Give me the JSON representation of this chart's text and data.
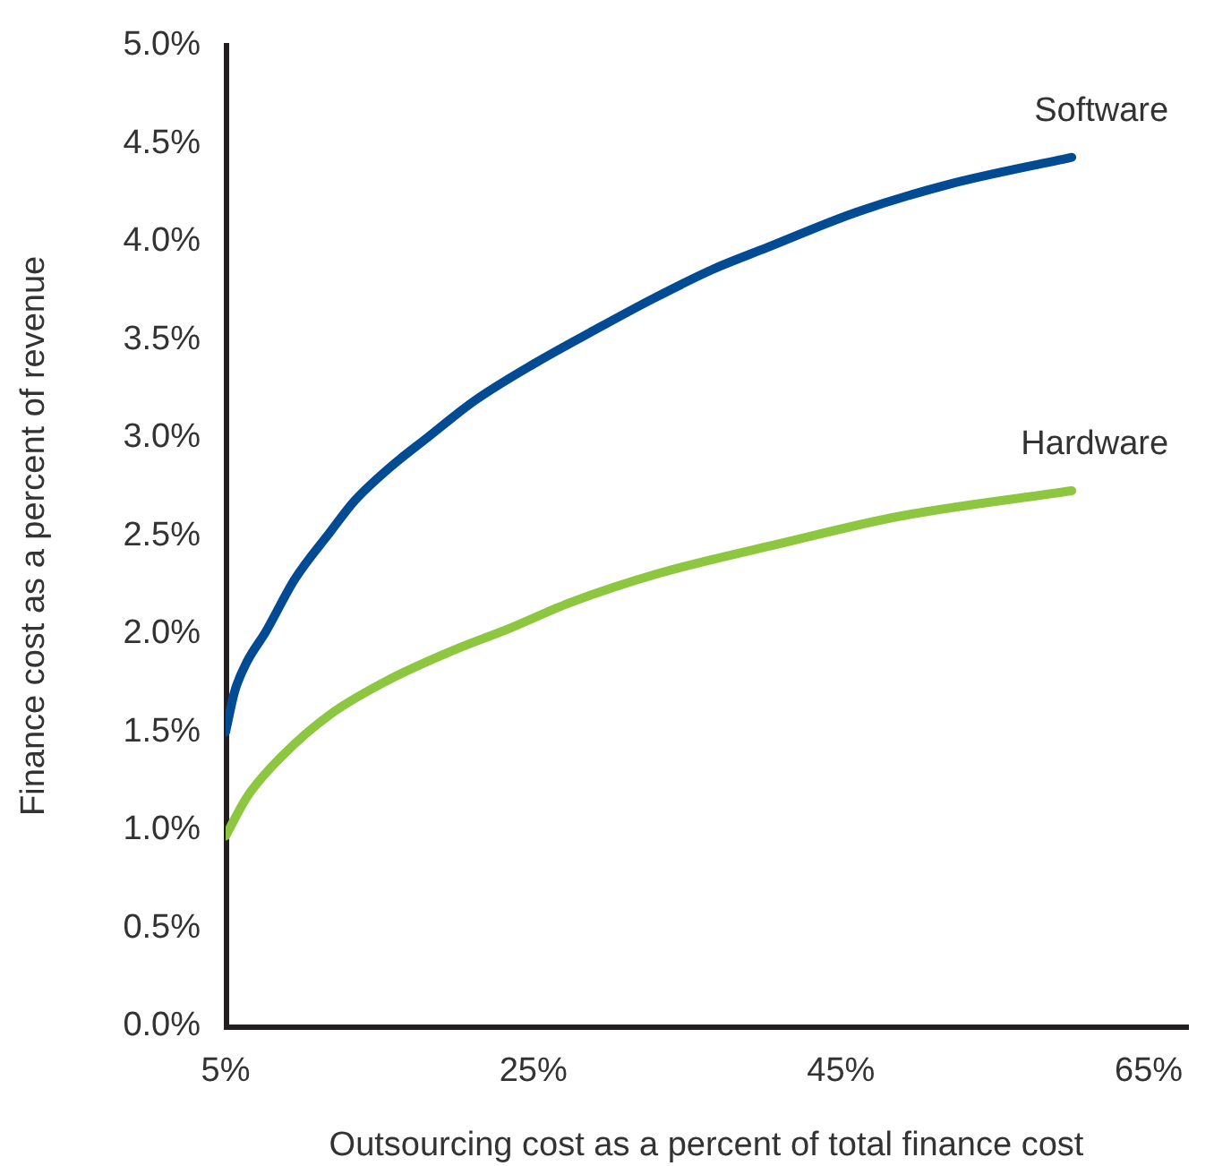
{
  "chart_data": {
    "type": "line",
    "xlabel": "Outsourcing cost as a percent of total finance cost",
    "ylabel": "Finance cost as a percent of revenue",
    "xlim": [
      5,
      67.5
    ],
    "xticks": [
      {
        "value": 5,
        "label": "5%"
      },
      {
        "value": 25,
        "label": "25%"
      },
      {
        "value": 45,
        "label": "45%"
      },
      {
        "value": 65,
        "label": "65%"
      }
    ],
    "ylim": [
      0,
      5
    ],
    "yticks": [
      {
        "value": 0,
        "label": "0.0%"
      },
      {
        "value": 0.5,
        "label": "0.5%"
      },
      {
        "value": 1,
        "label": "1.0%"
      },
      {
        "value": 1.5,
        "label": "1.5%"
      },
      {
        "value": 2,
        "label": "2.0%"
      },
      {
        "value": 2.5,
        "label": "2.5%"
      },
      {
        "value": 3,
        "label": "3.0%"
      },
      {
        "value": 3.5,
        "label": "3.5%"
      },
      {
        "value": 4,
        "label": "4.0%"
      },
      {
        "value": 4.5,
        "label": "4.5%"
      },
      {
        "value": 5,
        "label": "5.0%"
      }
    ],
    "marker": "none",
    "line_style": "solid",
    "series": [
      {
        "name": "Software",
        "color": "#004b93",
        "x": [
          5,
          5.6,
          6.4,
          7.6,
          9.5,
          11.8,
          13.4,
          15.7,
          18.1,
          21.2,
          25.1,
          29,
          32.8,
          36.7,
          40.2,
          46,
          51.9,
          60
        ],
        "values": [
          1.5,
          1.71,
          1.86,
          2.01,
          2.28,
          2.52,
          2.68,
          2.85,
          3.0,
          3.19,
          3.38,
          3.55,
          3.71,
          3.86,
          3.97,
          4.15,
          4.29,
          4.43
        ]
      },
      {
        "name": "Hardware",
        "color": "#8dc63f",
        "x": [
          5,
          6.4,
          8.7,
          11.8,
          15.7,
          19.6,
          23.5,
          27.4,
          33.2,
          41,
          48.8,
          60
        ],
        "values": [
          0.97,
          1.17,
          1.38,
          1.59,
          1.77,
          1.91,
          2.03,
          2.16,
          2.31,
          2.46,
          2.6,
          2.73
        ]
      }
    ]
  }
}
